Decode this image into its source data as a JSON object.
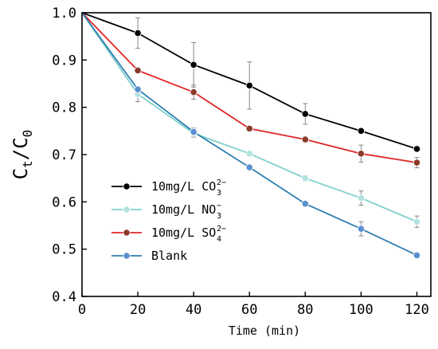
{
  "chart_data": {
    "type": "line",
    "title": "",
    "xlabel": "Time (min)",
    "ylabel": {
      "base": "C",
      "num_sub": "t",
      "den_sub": "0"
    },
    "xlim": [
      0,
      125
    ],
    "ylim": [
      0.4,
      1.0
    ],
    "x_ticks": [
      "0",
      "20",
      "40",
      "60",
      "80",
      "100",
      "120"
    ],
    "y_ticks": [
      "0.4",
      "0.5",
      "0.6",
      "0.7",
      "0.8",
      "0.9",
      "1.0"
    ],
    "x": [
      0,
      20,
      40,
      60,
      80,
      100,
      120
    ],
    "legend_position": "bottom-left",
    "grid": false,
    "series": [
      {
        "name": {
          "main": "10mg/L CO",
          "sub": "3",
          "sup": "2−"
        },
        "color": "#000000",
        "marker_color": "#000000",
        "values": [
          1.0,
          0.957,
          0.89,
          0.846,
          0.786,
          0.75,
          0.712
        ],
        "errors": [
          0,
          0.032,
          0.047,
          0.05,
          0.022,
          0.005,
          0.005
        ]
      },
      {
        "name": {
          "main": "10mg/L NO",
          "sub": "3",
          "sup": "−"
        },
        "color": "#7fd0cc",
        "marker_color": "#b3e3e0",
        "values": [
          1.0,
          0.828,
          0.745,
          0.702,
          0.65,
          0.608,
          0.558
        ],
        "errors": [
          0,
          0.016,
          0.008,
          0.005,
          0.006,
          0.015,
          0.012
        ]
      },
      {
        "name": {
          "main": "10mg/L SO",
          "sub": "4",
          "sup": "2−"
        },
        "color": "#e02626",
        "marker_color": "#8b3a2a",
        "values": [
          1.0,
          0.878,
          0.832,
          0.755,
          0.732,
          0.702,
          0.683
        ],
        "errors": [
          0,
          0.006,
          0.015,
          0.004,
          0.006,
          0.018,
          0.011
        ]
      },
      {
        "name": {
          "main": "Blank",
          "sub": "",
          "sup": ""
        },
        "color": "#2f7fb0",
        "marker_color": "#5b8fd0",
        "values": [
          1.0,
          0.838,
          0.748,
          0.673,
          0.596,
          0.543,
          0.487
        ],
        "errors": [
          0,
          0.004,
          0.008,
          0.004,
          0.004,
          0.015,
          0.005
        ]
      }
    ]
  }
}
